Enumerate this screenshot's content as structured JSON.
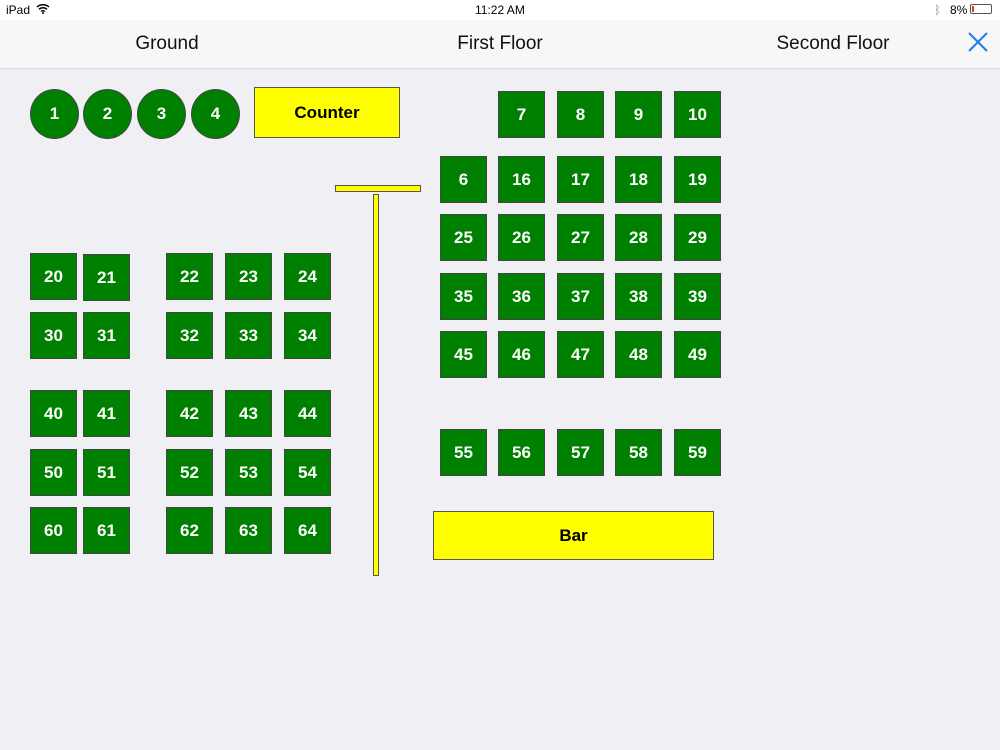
{
  "status_bar": {
    "device": "iPad",
    "time": "11:22 AM",
    "battery": "8%"
  },
  "nav": {
    "tabs": [
      "Ground",
      "First Floor",
      "Second Floor"
    ],
    "close_icon": "close-x-icon",
    "accent": "#1a7cf5"
  },
  "colors": {
    "table": "#008000",
    "fixture": "#ffff00"
  },
  "fixtures": {
    "counter": "Counter",
    "bar": "Bar"
  },
  "tables": {
    "round": [
      "1",
      "2",
      "3",
      "4"
    ],
    "square": [
      "7",
      "8",
      "9",
      "10",
      "6",
      "16",
      "17",
      "18",
      "19",
      "25",
      "26",
      "27",
      "28",
      "29",
      "35",
      "36",
      "37",
      "38",
      "39",
      "45",
      "46",
      "47",
      "48",
      "49",
      "55",
      "56",
      "57",
      "58",
      "59",
      "20",
      "21",
      "22",
      "23",
      "24",
      "30",
      "31",
      "32",
      "33",
      "34",
      "40",
      "41",
      "42",
      "43",
      "44",
      "50",
      "51",
      "52",
      "53",
      "54",
      "60",
      "61",
      "62",
      "63",
      "64"
    ]
  }
}
